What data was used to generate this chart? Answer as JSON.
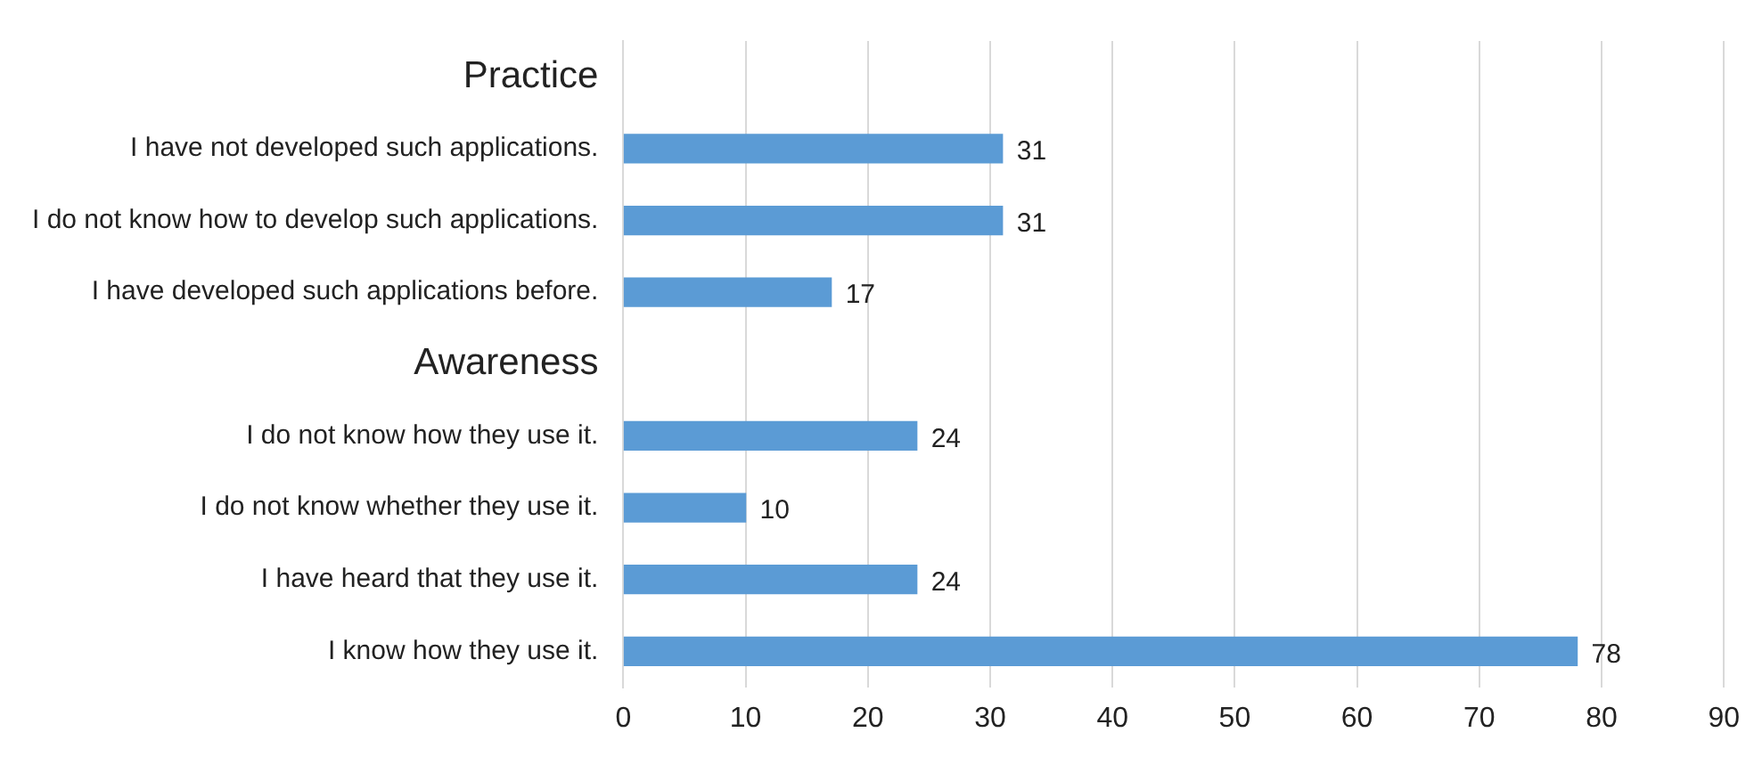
{
  "chart_data": {
    "type": "bar",
    "orientation": "horizontal",
    "categories": [
      "Practice",
      "I have not developed such applications.",
      "I do not know how to develop such applications.",
      "I have developed such applications before.",
      "Awareness",
      "I do not know how they use it.",
      "I do not know whether they use it.",
      "I have heard that they use it.",
      "I know how they use it."
    ],
    "values": [
      null,
      31,
      31,
      17,
      null,
      24,
      10,
      24,
      78
    ],
    "color": "#5b9bd5",
    "xlim": [
      0,
      90
    ],
    "xticks": [
      0,
      10,
      20,
      30,
      40,
      50,
      60,
      70,
      80,
      90
    ],
    "grid": "x",
    "data_labels": true,
    "legend": false
  }
}
